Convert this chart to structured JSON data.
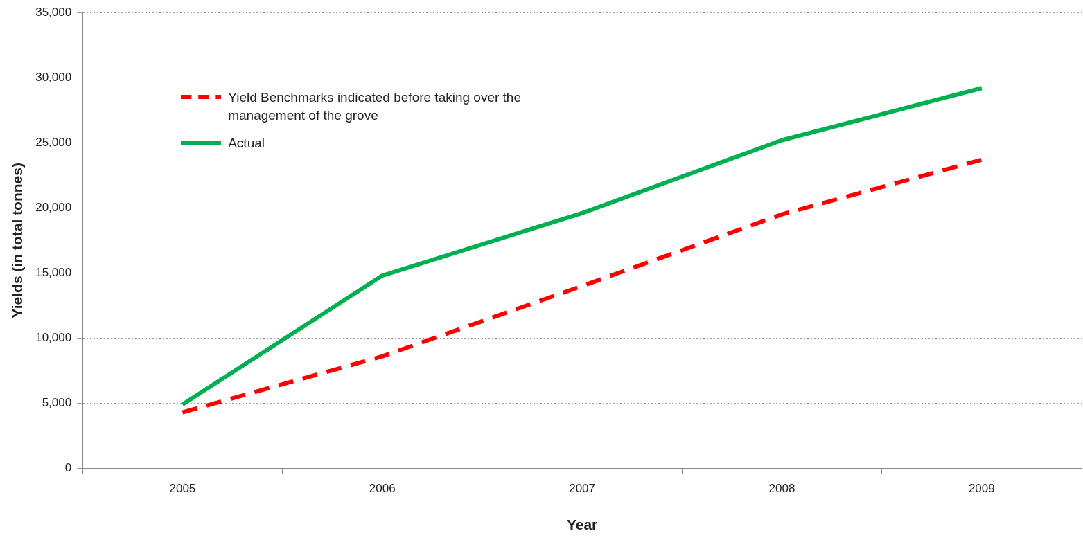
{
  "chart_data": {
    "type": "line",
    "xlabel": "Year",
    "ylabel": "Yields (in total tonnes)",
    "categories": [
      "2005",
      "2006",
      "2007",
      "2008",
      "2009"
    ],
    "series": [
      {
        "name": "Yield Benchmarks indicated before taking over the management of the grove",
        "color": "#ff0000",
        "line_style": "dashed",
        "values": [
          4300,
          8600,
          14000,
          19500,
          23700
        ]
      },
      {
        "name": "Actual",
        "color": "#00b050",
        "line_style": "solid",
        "values": [
          4900,
          14800,
          19600,
          25200,
          29200
        ]
      }
    ],
    "ylim": [
      0,
      35000
    ],
    "yticks": [
      {
        "value": 0,
        "label": "0"
      },
      {
        "value": 5000,
        "label": "5,000"
      },
      {
        "value": 10000,
        "label": "10,000"
      },
      {
        "value": 15000,
        "label": "15,000"
      },
      {
        "value": 20000,
        "label": "20,000"
      },
      {
        "value": 25000,
        "label": "25,000"
      },
      {
        "value": 30000,
        "label": "30,000"
      },
      {
        "value": 35000,
        "label": "35,000"
      }
    ],
    "grid": "y",
    "legend": "top left",
    "marker": "none"
  }
}
